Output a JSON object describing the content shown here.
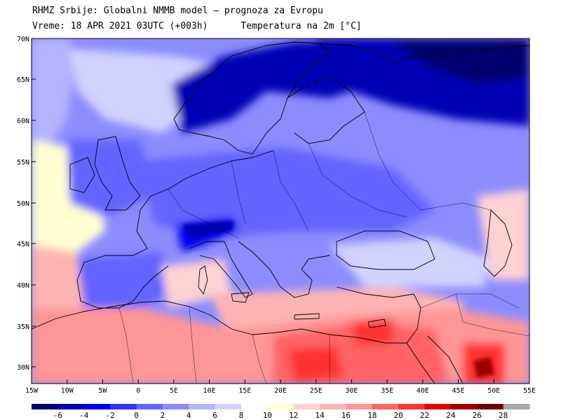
{
  "header": {
    "line1": "RHMZ Srbije: Globalni NMMB model — prognoza za Evropu",
    "line2_left": "Vreme: 18 APR 2021 03UTC (+003h)",
    "line2_right": "Temperatura na 2m [°C]"
  },
  "axes": {
    "lat_labels": [
      "70N",
      "65N",
      "60N",
      "55N",
      "50N",
      "45N",
      "40N",
      "35N",
      "30N"
    ],
    "lon_labels": [
      "15W",
      "10W",
      "5W",
      "0",
      "5E",
      "10E",
      "15E",
      "20E",
      "25E",
      "30E",
      "35E",
      "40E",
      "45E",
      "50E",
      "55E"
    ]
  },
  "colorbar": {
    "labels": [
      "-6",
      "-4",
      "-2",
      "0",
      "2",
      "4",
      "6",
      "8",
      "10",
      "12",
      "14",
      "16",
      "18",
      "20",
      "22",
      "24",
      "26",
      "28"
    ],
    "colors": [
      "#000070",
      "#0000b4",
      "#0000f0",
      "#3232ff",
      "#6464ff",
      "#8c8cff",
      "#b4b4ff",
      "#d2d2ff",
      "#ffffff",
      "#ffffd2",
      "#ffd2d2",
      "#ffb4b4",
      "#ff9696",
      "#ff6464",
      "#ff3232",
      "#e60000",
      "#a00000",
      "#700000",
      "#a8a8a8"
    ]
  }
}
